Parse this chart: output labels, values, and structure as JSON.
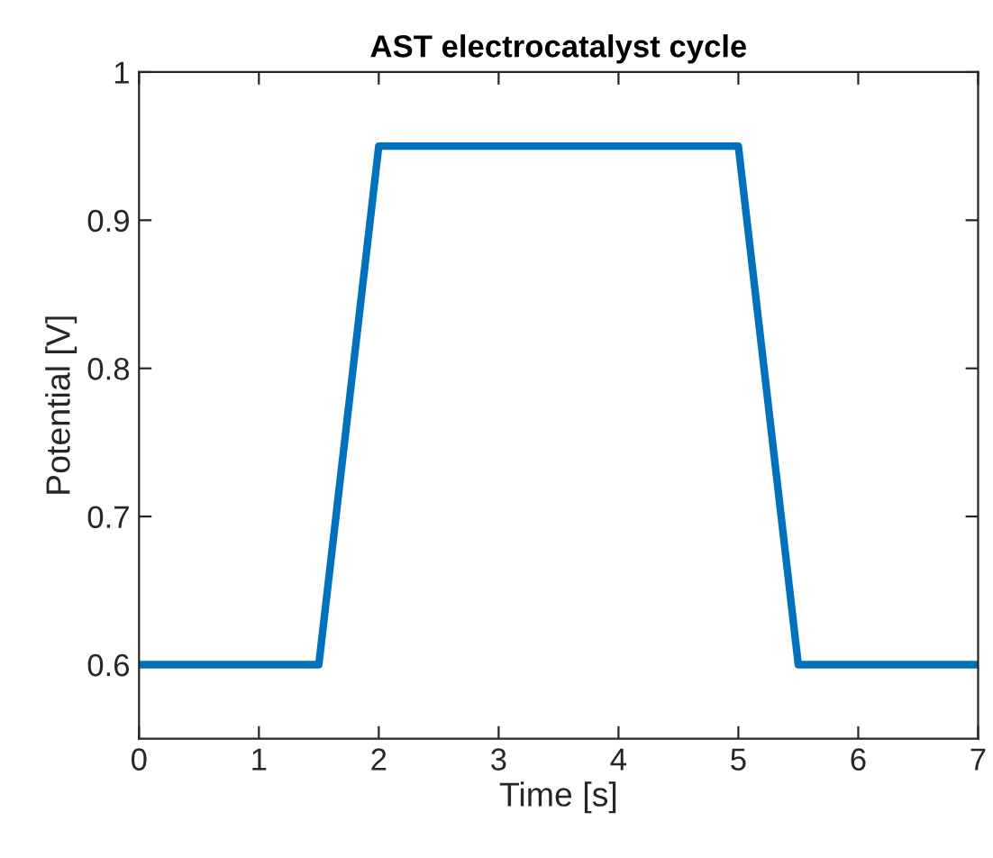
{
  "chart_data": {
    "type": "line",
    "title": "AST electrocatalyst cycle",
    "xlabel": "Time [s]",
    "ylabel": "Potential [V]",
    "x": [
      0,
      1.5,
      2,
      5,
      5.5,
      7
    ],
    "series": [
      {
        "color": "#0072bd",
        "values": [
          0.6,
          0.6,
          0.95,
          0.95,
          0.6,
          0.6
        ]
      }
    ],
    "xlim": [
      0,
      7
    ],
    "ylim": [
      0.55,
      1
    ],
    "xticks": [
      0,
      1,
      2,
      3,
      4,
      5,
      6,
      7
    ],
    "yticks": [
      0.6,
      0.7,
      0.8,
      0.9,
      1
    ],
    "grid": false,
    "marker": "none",
    "line_style": "solid"
  }
}
